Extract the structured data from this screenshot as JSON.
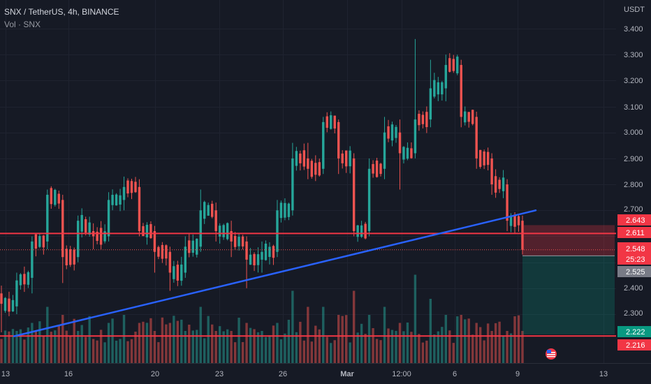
{
  "header": {
    "symbol_line": "SNX / TetherUS, 4h, BINANCE",
    "volume_line": "Vol · SNX"
  },
  "price_axis": {
    "currency": "USDT",
    "ticks": [
      "3.400",
      "3.300",
      "3.200",
      "3.100",
      "3.000",
      "2.900",
      "2.800",
      "2.700",
      "2.400",
      "2.300"
    ]
  },
  "time_axis": {
    "ticks": [
      "13",
      "16",
      "20",
      "23",
      "26",
      "Mar",
      "12:00",
      "6",
      "9",
      "13"
    ]
  },
  "price_tags": {
    "stop": "2.643",
    "resistance": "2.611",
    "last": "2.548",
    "countdown": "25:23",
    "entry": "2.525",
    "target": "2.222",
    "support": "2.216"
  },
  "colors": {
    "background": "#161a25",
    "up": "#26a69a",
    "down": "#ef5350",
    "level_line": "#f23645",
    "trend_line": "#2962ff"
  },
  "icons": {
    "flag": "us-flag-icon"
  },
  "chart_data": {
    "type": "candlestick",
    "timeframe": "4h",
    "yrange": [
      2.15,
      3.45
    ],
    "levels": {
      "resistance": 2.611,
      "support": 2.216
    },
    "trendline": {
      "from": 2.215,
      "to": 2.7
    },
    "position": {
      "entry": 2.525,
      "stop": 2.643,
      "target": 2.222
    },
    "anchors": [
      {
        "o": 2.38,
        "c": 2.34,
        "h": 2.41,
        "l": 2.23,
        "v": 0.3
      },
      {
        "o": 2.33,
        "c": 2.43,
        "h": 2.46,
        "l": 2.3,
        "v": 0.4
      },
      {
        "o": 2.44,
        "c": 2.58,
        "h": 2.6,
        "l": 2.38,
        "v": 0.5
      },
      {
        "o": 2.58,
        "c": 2.76,
        "h": 2.78,
        "l": 2.55,
        "v": 0.7
      },
      {
        "o": 2.74,
        "c": 2.52,
        "h": 2.76,
        "l": 2.42,
        "v": 0.6
      },
      {
        "o": 2.52,
        "c": 2.66,
        "h": 2.68,
        "l": 2.5,
        "v": 0.4
      },
      {
        "o": 2.62,
        "c": 2.6,
        "h": 2.65,
        "l": 2.55,
        "v": 0.3
      },
      {
        "o": 2.6,
        "c": 2.74,
        "h": 2.77,
        "l": 2.58,
        "v": 0.5
      },
      {
        "o": 2.74,
        "c": 2.79,
        "h": 2.83,
        "l": 2.7,
        "v": 0.6
      },
      {
        "o": 2.79,
        "c": 2.62,
        "h": 2.82,
        "l": 2.6,
        "v": 0.5
      },
      {
        "o": 2.62,
        "c": 2.54,
        "h": 2.64,
        "l": 2.46,
        "v": 0.4
      },
      {
        "o": 2.54,
        "c": 2.46,
        "h": 2.56,
        "l": 2.39,
        "v": 0.5
      },
      {
        "o": 2.46,
        "c": 2.56,
        "h": 2.6,
        "l": 2.44,
        "v": 0.4
      },
      {
        "o": 2.56,
        "c": 2.7,
        "h": 2.78,
        "l": 2.54,
        "v": 0.7
      },
      {
        "o": 2.7,
        "c": 2.62,
        "h": 2.73,
        "l": 2.58,
        "v": 0.4
      },
      {
        "o": 2.62,
        "c": 2.58,
        "h": 2.66,
        "l": 2.52,
        "v": 0.4
      },
      {
        "o": 2.58,
        "c": 2.51,
        "h": 2.6,
        "l": 2.4,
        "v": 0.5
      },
      {
        "o": 2.51,
        "c": 2.54,
        "h": 2.58,
        "l": 2.46,
        "v": 0.4
      },
      {
        "o": 2.54,
        "c": 2.7,
        "h": 2.74,
        "l": 2.52,
        "v": 0.5
      },
      {
        "o": 2.7,
        "c": 2.9,
        "h": 2.96,
        "l": 2.68,
        "v": 0.9
      },
      {
        "o": 2.9,
        "c": 2.86,
        "h": 2.96,
        "l": 2.82,
        "v": 0.7
      },
      {
        "o": 2.86,
        "c": 3.04,
        "h": 3.06,
        "l": 2.84,
        "v": 0.7
      },
      {
        "o": 3.04,
        "c": 2.9,
        "h": 3.05,
        "l": 2.84,
        "v": 0.6
      },
      {
        "o": 2.9,
        "c": 2.62,
        "h": 2.92,
        "l": 2.6,
        "v": 0.9
      },
      {
        "o": 2.62,
        "c": 2.86,
        "h": 2.9,
        "l": 2.6,
        "v": 0.6
      },
      {
        "o": 2.86,
        "c": 3.0,
        "h": 3.06,
        "l": 2.82,
        "v": 0.7
      },
      {
        "o": 3.0,
        "c": 2.92,
        "h": 3.05,
        "l": 2.78,
        "v": 0.5
      },
      {
        "o": 2.92,
        "c": 3.05,
        "h": 3.36,
        "l": 2.9,
        "v": 1.1
      },
      {
        "o": 3.05,
        "c": 3.17,
        "h": 3.28,
        "l": 3.02,
        "v": 0.8
      },
      {
        "o": 3.17,
        "c": 3.26,
        "h": 3.3,
        "l": 3.12,
        "v": 0.6
      },
      {
        "o": 3.26,
        "c": 3.06,
        "h": 3.28,
        "l": 3.02,
        "v": 0.6
      },
      {
        "o": 3.06,
        "c": 2.9,
        "h": 3.08,
        "l": 2.86,
        "v": 0.5
      },
      {
        "o": 2.9,
        "c": 2.8,
        "h": 2.92,
        "l": 2.76,
        "v": 0.4
      },
      {
        "o": 2.8,
        "c": 2.66,
        "h": 2.82,
        "l": 2.62,
        "v": 0.4
      },
      {
        "o": 2.66,
        "c": 2.55,
        "h": 2.68,
        "l": 2.53,
        "v": 0.4
      }
    ]
  }
}
